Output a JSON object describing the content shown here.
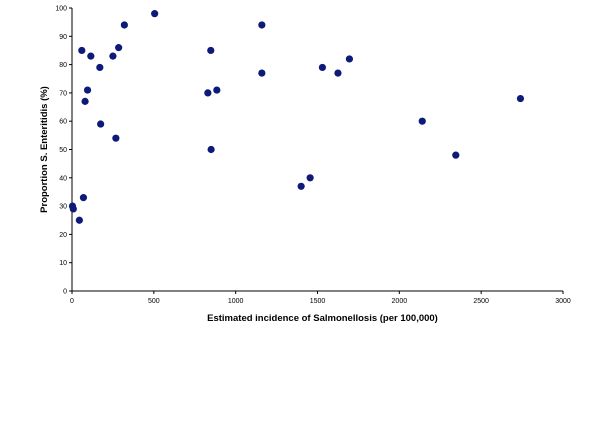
{
  "chart_data": {
    "type": "scatter",
    "xlabel": "Estimated incidence of Salmonellosis (per 100,000)",
    "ylabel": "Proportion S. Enteritidis (%)",
    "xlim": [
      0,
      3000
    ],
    "ylim": [
      0,
      100
    ],
    "xticks": [
      "0",
      "500",
      "1000",
      "1500",
      "2000",
      "2500",
      "3000"
    ],
    "yticks": [
      "0",
      "10",
      "20",
      "30",
      "40",
      "50",
      "60",
      "70",
      "80",
      "90",
      "100"
    ],
    "grid": false,
    "marker_color": "#0d1a7a",
    "points": [
      {
        "x": 3,
        "y": 30
      },
      {
        "x": 8,
        "y": 29
      },
      {
        "x": 45,
        "y": 25
      },
      {
        "x": 60,
        "y": 85
      },
      {
        "x": 70,
        "y": 33
      },
      {
        "x": 80,
        "y": 67
      },
      {
        "x": 95,
        "y": 71
      },
      {
        "x": 115,
        "y": 83
      },
      {
        "x": 170,
        "y": 79
      },
      {
        "x": 175,
        "y": 59
      },
      {
        "x": 250,
        "y": 83
      },
      {
        "x": 268,
        "y": 54
      },
      {
        "x": 285,
        "y": 86
      },
      {
        "x": 320,
        "y": 94
      },
      {
        "x": 505,
        "y": 98
      },
      {
        "x": 830,
        "y": 70
      },
      {
        "x": 848,
        "y": 85
      },
      {
        "x": 850,
        "y": 50
      },
      {
        "x": 885,
        "y": 71
      },
      {
        "x": 1160,
        "y": 94
      },
      {
        "x": 1160,
        "y": 77
      },
      {
        "x": 1400,
        "y": 37
      },
      {
        "x": 1455,
        "y": 40
      },
      {
        "x": 1530,
        "y": 79
      },
      {
        "x": 1625,
        "y": 77
      },
      {
        "x": 1695,
        "y": 82
      },
      {
        "x": 2140,
        "y": 60
      },
      {
        "x": 2345,
        "y": 48
      },
      {
        "x": 2740,
        "y": 68
      }
    ]
  }
}
